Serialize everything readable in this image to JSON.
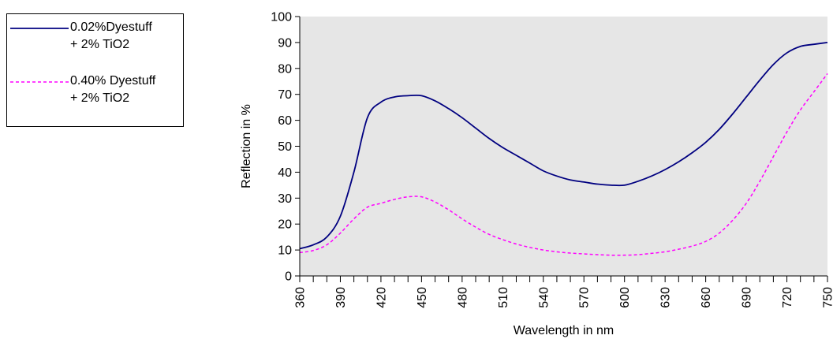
{
  "chart_data": {
    "type": "line",
    "title": "",
    "xlabel": "Wavelength in nm",
    "ylabel": "Reflection in %",
    "xlim": [
      360,
      750
    ],
    "ylim": [
      0,
      100
    ],
    "x_ticks": [
      360,
      390,
      420,
      450,
      480,
      510,
      540,
      570,
      600,
      630,
      660,
      690,
      720,
      750
    ],
    "x_minor_step": 10,
    "y_ticks": [
      0,
      10,
      20,
      30,
      40,
      50,
      60,
      70,
      80,
      90,
      100
    ],
    "plot_background": "#e6e6e6",
    "grid": false,
    "legend_position": "left",
    "series": [
      {
        "name_lines": [
          "0.02%Dyestuff",
          "+ 2% TiO2"
        ],
        "color": "#000080",
        "style": "solid",
        "x": [
          360,
          370,
          380,
          390,
          400,
          410,
          420,
          430,
          440,
          450,
          460,
          470,
          480,
          490,
          500,
          510,
          520,
          530,
          540,
          550,
          560,
          570,
          580,
          590,
          600,
          610,
          620,
          630,
          640,
          650,
          660,
          670,
          680,
          690,
          700,
          710,
          720,
          730,
          740,
          750
        ],
        "y": [
          10.5,
          12,
          15,
          23,
          40,
          61,
          67,
          69,
          69.5,
          69.5,
          67.5,
          64.5,
          61,
          57,
          53,
          49.5,
          46.5,
          43.5,
          40.5,
          38.5,
          37,
          36.2,
          35.4,
          35,
          35,
          36.5,
          38.5,
          41,
          44,
          47.5,
          51.5,
          56.5,
          62.5,
          69,
          75.5,
          81.5,
          86,
          88.5,
          89.3,
          90
        ]
      },
      {
        "name_lines": [
          "0.40% Dyestuff",
          "+ 2% TiO2"
        ],
        "color": "#ff00ff",
        "style": "dashed",
        "x": [
          360,
          370,
          380,
          390,
          400,
          410,
          420,
          430,
          440,
          450,
          460,
          470,
          480,
          490,
          500,
          510,
          520,
          530,
          540,
          550,
          560,
          570,
          580,
          590,
          600,
          610,
          620,
          630,
          640,
          650,
          660,
          670,
          680,
          690,
          700,
          710,
          720,
          730,
          740,
          750
        ],
        "y": [
          9,
          9.8,
          12,
          16.5,
          22,
          26.5,
          28,
          29.5,
          30.5,
          30.5,
          28.5,
          25.5,
          22,
          18.8,
          16,
          14,
          12.3,
          11,
          10,
          9.3,
          8.8,
          8.5,
          8.2,
          8,
          8,
          8.2,
          8.7,
          9.3,
          10.3,
          11.5,
          13.3,
          16.5,
          21.5,
          28,
          36.5,
          46,
          55.5,
          64,
          71,
          78
        ]
      }
    ]
  }
}
